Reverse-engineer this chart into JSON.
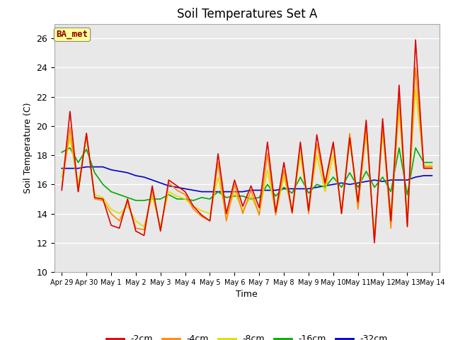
{
  "title": "Soil Temperatures Set A",
  "xlabel": "Time",
  "ylabel": "Soil Temperature (C)",
  "ylim": [
    10,
    27
  ],
  "yticks": [
    10,
    12,
    14,
    16,
    18,
    20,
    22,
    24,
    26
  ],
  "bg_color": "#e8e8e8",
  "annotation_text": "BA_met",
  "annotation_text_color": "#8B0000",
  "annotation_box_color": "#ffff99",
  "series_colors": {
    "-2cm": "#dd0000",
    "-4cm": "#ff8800",
    "-8cm": "#dddd00",
    "-16cm": "#00aa00",
    "-32cm": "#0000cc"
  },
  "x_labels": [
    "Apr 29",
    "Apr 30",
    "May 1",
    "May 2",
    "May 3",
    "May 4",
    "May 5",
    "May 6",
    "May 7",
    "May 8",
    "May 9",
    "May 10",
    "May 11",
    "May 12",
    "May 13",
    "May 14"
  ],
  "n_days": 16,
  "series": {
    "-2cm": [
      15.6,
      21.0,
      15.5,
      19.5,
      15.1,
      15.0,
      13.2,
      13.0,
      15.0,
      12.8,
      12.5,
      15.9,
      12.8,
      16.3,
      15.9,
      15.5,
      14.5,
      13.9,
      13.5,
      18.1,
      14.0,
      16.3,
      14.5,
      15.9,
      14.4,
      18.9,
      14.1,
      17.5,
      14.1,
      18.9,
      14.2,
      19.4,
      16.1,
      18.9,
      14.0,
      19.2,
      14.8,
      20.4,
      12.0,
      20.5,
      13.5,
      22.8,
      13.1,
      25.9,
      17.1,
      17.1
    ],
    "-4cm": [
      15.8,
      19.9,
      15.5,
      19.5,
      15.0,
      14.9,
      14.0,
      13.5,
      14.8,
      13.0,
      12.9,
      15.6,
      12.9,
      16.1,
      15.6,
      15.3,
      14.3,
      13.8,
      13.5,
      17.5,
      13.5,
      16.0,
      14.0,
      15.6,
      13.9,
      18.1,
      13.9,
      17.0,
      14.0,
      18.7,
      14.0,
      18.8,
      15.9,
      18.7,
      14.0,
      19.5,
      14.3,
      20.0,
      12.1,
      20.0,
      13.0,
      21.9,
      13.2,
      24.0,
      17.2,
      17.2
    ],
    "-8cm": [
      16.5,
      19.2,
      16.0,
      19.2,
      15.3,
      15.1,
      14.3,
      14.0,
      14.5,
      13.5,
      13.1,
      15.2,
      13.1,
      15.5,
      15.2,
      15.0,
      14.5,
      14.2,
      14.0,
      16.5,
      13.9,
      15.5,
      14.2,
      15.2,
      14.0,
      17.0,
      14.0,
      16.5,
      14.3,
      18.0,
      14.3,
      18.0,
      15.5,
      18.0,
      14.3,
      19.0,
      14.5,
      19.5,
      12.5,
      19.5,
      13.9,
      21.0,
      13.9,
      22.5,
      17.3,
      17.3
    ],
    "-16cm": [
      18.2,
      18.5,
      17.5,
      18.4,
      16.8,
      16.0,
      15.5,
      15.3,
      15.1,
      14.9,
      14.9,
      15.0,
      15.0,
      15.3,
      15.0,
      15.0,
      14.9,
      15.1,
      15.0,
      15.5,
      15.1,
      15.2,
      15.2,
      15.0,
      15.1,
      16.0,
      15.2,
      15.8,
      15.4,
      16.5,
      15.4,
      16.0,
      15.8,
      16.5,
      15.8,
      16.8,
      15.8,
      16.9,
      15.8,
      16.5,
      15.5,
      18.5,
      15.3,
      18.5,
      17.5,
      17.5
    ],
    "-32cm": [
      17.1,
      17.1,
      17.1,
      17.2,
      17.2,
      17.2,
      17.0,
      16.9,
      16.8,
      16.6,
      16.5,
      16.3,
      16.1,
      15.9,
      15.8,
      15.7,
      15.6,
      15.5,
      15.5,
      15.5,
      15.5,
      15.5,
      15.5,
      15.6,
      15.6,
      15.6,
      15.6,
      15.7,
      15.7,
      15.7,
      15.7,
      15.8,
      15.9,
      16.0,
      16.1,
      16.0,
      16.1,
      16.2,
      16.3,
      16.2,
      16.3,
      16.3,
      16.3,
      16.5,
      16.6,
      16.6
    ]
  }
}
